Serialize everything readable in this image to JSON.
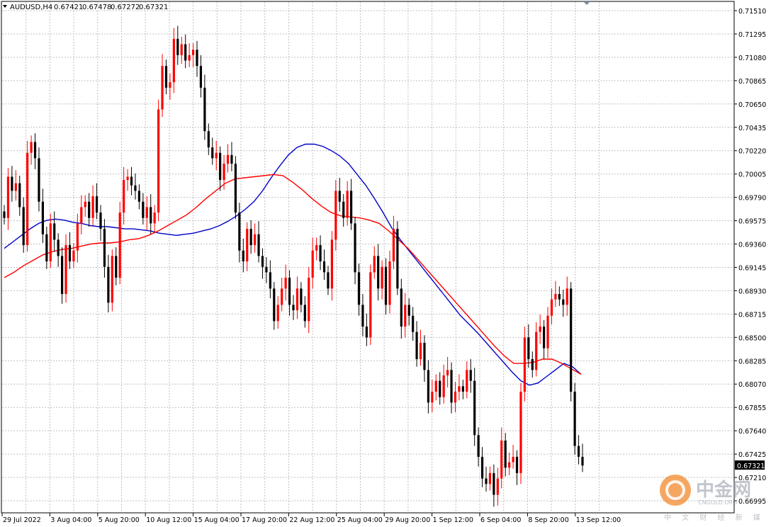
{
  "header": {
    "symbol": "AUDUSD,H4",
    "open": "0.67421",
    "high": "0.67478",
    "low": "0.67272",
    "close": "0.67321"
  },
  "current_price_label": "0.67321",
  "watermark": {
    "name": "中金网",
    "site": "CNGOLD.ORG",
    "tagline": "中 文 财 经 新 媒 体"
  },
  "colors": {
    "bull_candle": "#ff0000",
    "bear_candle": "#000000",
    "ma_fast": "#0000c8",
    "ma_slow": "#ff0000",
    "grid": "#c0c0c0",
    "doji": "#00a000"
  },
  "chart_data": {
    "type": "candlestick",
    "title": "AUDUSD,H4",
    "ylim": [
      0.6684,
      0.7155
    ],
    "y_ticks": [
      "0.71510",
      "0.71295",
      "0.71080",
      "0.70865",
      "0.70650",
      "0.70435",
      "0.70220",
      "0.70005",
      "0.69790",
      "0.69575",
      "0.69360",
      "0.69145",
      "0.68930",
      "0.68715",
      "0.68500",
      "0.68285",
      "0.68070",
      "0.67855",
      "0.67640",
      "0.67425",
      "0.67210",
      "0.66995"
    ],
    "x_ticks": [
      "29 Jul 2022",
      "3 Aug 04:00",
      "5 Aug 20:00",
      "10 Aug 12:00",
      "15 Aug 04:00",
      "17 Aug 20:00",
      "22 Aug 12:00",
      "25 Aug 04:00",
      "29 Aug 20:00",
      "1 Sep 12:00",
      "6 Sep 04:00",
      "8 Sep 20:00",
      "13 Sep 12:00"
    ],
    "grid": true,
    "candles_close": [
      0.696,
      0.6998,
      0.6985,
      0.6992,
      0.697,
      0.6935,
      0.702,
      0.703,
      0.7015,
      0.6975,
      0.6945,
      0.692,
      0.6955,
      0.694,
      0.6925,
      0.689,
      0.6935,
      0.692,
      0.693,
      0.6955,
      0.697,
      0.6975,
      0.696,
      0.698,
      0.6965,
      0.695,
      0.6915,
      0.6882,
      0.6925,
      0.6905,
      0.6965,
      0.6995,
      0.6998,
      0.699,
      0.6985,
      0.6975,
      0.696,
      0.697,
      0.6955,
      0.6965,
      0.706,
      0.71,
      0.708,
      0.7085,
      0.7125,
      0.711,
      0.712,
      0.7105,
      0.711,
      0.7115,
      0.71,
      0.708,
      0.704,
      0.7025,
      0.7015,
      0.702,
      0.6995,
      0.701,
      0.7018,
      0.701,
      0.6965,
      0.693,
      0.692,
      0.695,
      0.6935,
      0.6945,
      0.6925,
      0.6915,
      0.691,
      0.6895,
      0.6865,
      0.688,
      0.6895,
      0.6905,
      0.688,
      0.6875,
      0.6895,
      0.688,
      0.6865,
      0.6905,
      0.693,
      0.6935,
      0.692,
      0.691,
      0.6895,
      0.694,
      0.6985,
      0.6975,
      0.696,
      0.6985,
      0.6955,
      0.691,
      0.688,
      0.686,
      0.685,
      0.691,
      0.6925,
      0.6895,
      0.6915,
      0.688,
      0.692,
      0.695,
      0.6895,
      0.686,
      0.688,
      0.687,
      0.6855,
      0.683,
      0.6845,
      0.682,
      0.679,
      0.68,
      0.681,
      0.6795,
      0.6815,
      0.682,
      0.679,
      0.68,
      0.6805,
      0.68,
      0.682,
      0.681,
      0.676,
      0.674,
      0.672,
      0.6715,
      0.6725,
      0.6705,
      0.672,
      0.6755,
      0.673,
      0.6735,
      0.674,
      0.6725,
      0.68,
      0.685,
      0.683,
      0.682,
      0.6855,
      0.686,
      0.684,
      0.687,
      0.6885,
      0.689,
      0.6885,
      0.688,
      0.6895,
      0.68,
      0.675,
      0.674,
      0.6732
    ],
    "series": [
      {
        "name": "MA fast",
        "color": "#0000c8",
        "values": [
          0.6932,
          0.6938,
          0.6944,
          0.695,
          0.6955,
          0.6958,
          0.6959,
          0.6958,
          0.6956,
          0.6955,
          0.6953,
          0.6952,
          0.6952,
          0.6951,
          0.695,
          0.695,
          0.6949,
          0.6948,
          0.6946,
          0.6945,
          0.6944,
          0.6945,
          0.6946,
          0.6948,
          0.695,
          0.6953,
          0.6957,
          0.6962,
          0.6968,
          0.6975,
          0.6985,
          0.6997,
          0.7008,
          0.7018,
          0.7025,
          0.7028,
          0.7028,
          0.7026,
          0.7022,
          0.7017,
          0.701,
          0.7,
          0.699,
          0.6978,
          0.6965,
          0.6951,
          0.694,
          0.693,
          0.692,
          0.691,
          0.69,
          0.689,
          0.688,
          0.687,
          0.6862,
          0.6854,
          0.6845,
          0.6836,
          0.6827,
          0.6818,
          0.681,
          0.6806,
          0.6808,
          0.6814,
          0.682,
          0.6826,
          0.6823,
          0.6816
        ]
      },
      {
        "name": "MA slow",
        "color": "#ff0000",
        "values": [
          0.6905,
          0.691,
          0.6916,
          0.6921,
          0.6926,
          0.6929,
          0.6931,
          0.6932,
          0.6934,
          0.6936,
          0.6937,
          0.6937,
          0.6938,
          0.694,
          0.6941,
          0.6944,
          0.6948,
          0.6953,
          0.6958,
          0.6963,
          0.697,
          0.6978,
          0.6985,
          0.6992,
          0.6996,
          0.6997,
          0.6998,
          0.6999,
          0.7,
          0.6999,
          0.6993,
          0.6986,
          0.6978,
          0.6971,
          0.6965,
          0.6962,
          0.6961,
          0.696,
          0.6958,
          0.6955,
          0.6948,
          0.694,
          0.6932,
          0.6922,
          0.6912,
          0.6902,
          0.6892,
          0.6882,
          0.6872,
          0.6862,
          0.6852,
          0.6842,
          0.6833,
          0.6826,
          0.6826,
          0.6827,
          0.683,
          0.683,
          0.6826,
          0.6821,
          0.6816
        ]
      }
    ]
  }
}
